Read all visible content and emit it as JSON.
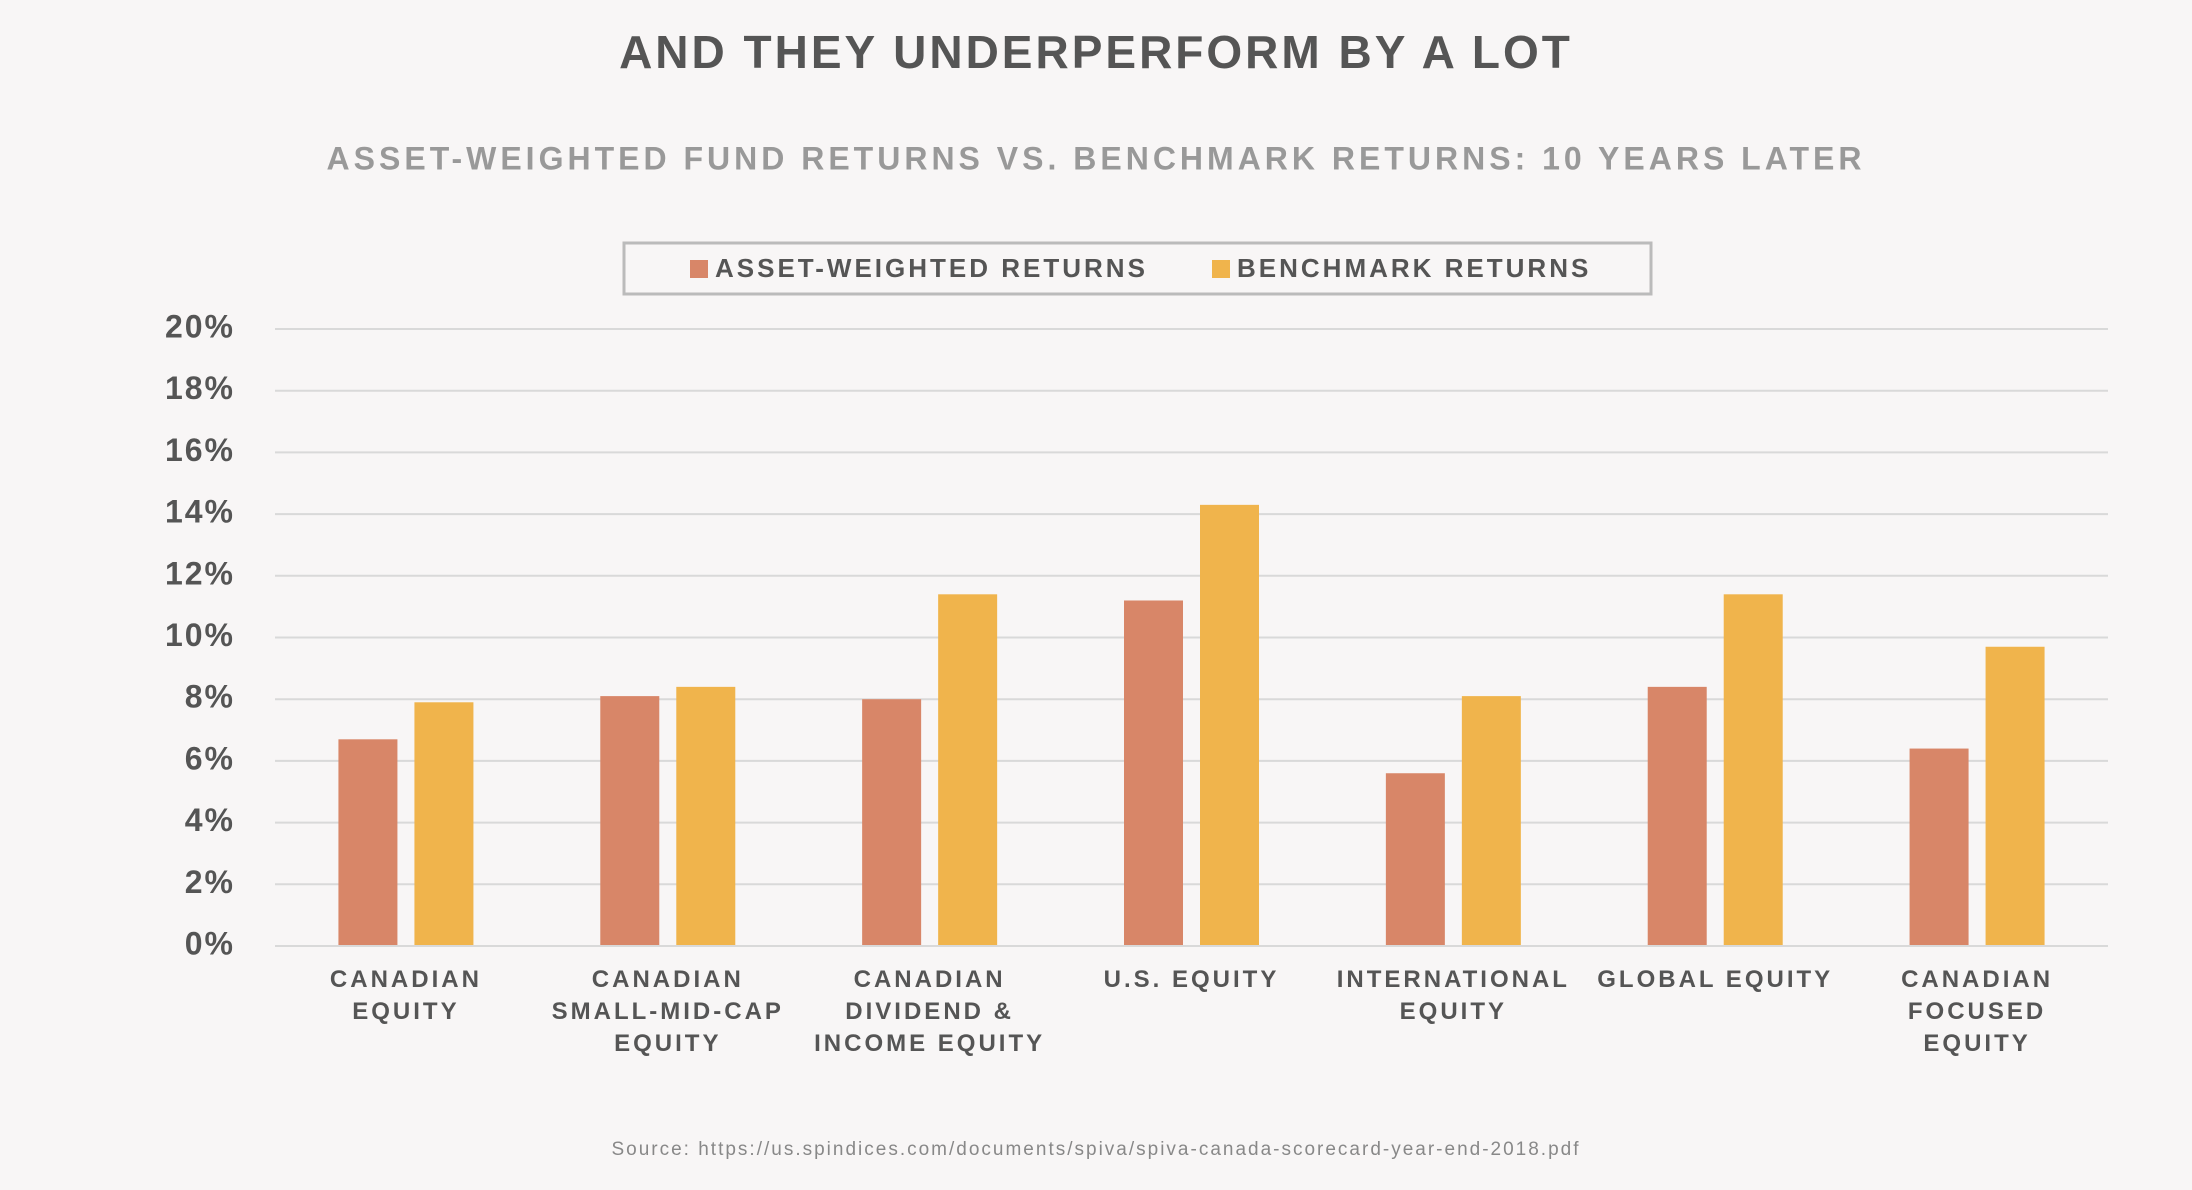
{
  "chart_data": {
    "type": "bar",
    "title": "AND THEY UNDERPERFORM BY A LOT",
    "subtitle": "ASSET-WEIGHTED FUND RETURNS VS. BENCHMARK RETURNS: 10 YEARS LATER",
    "categories": [
      "CANADIAN EQUITY",
      "CANADIAN SMALL-MID-CAP EQUITY",
      "CANADIAN DIVIDEND & INCOME EQUITY",
      "U.S. EQUITY",
      "INTERNATIONAL EQUITY",
      "GLOBAL EQUITY",
      "CANADIAN FOCUSED EQUITY"
    ],
    "series": [
      {
        "name": "ASSET-WEIGHTED RETURNS",
        "color": "#d88668",
        "values": [
          6.7,
          8.1,
          8.0,
          11.2,
          5.6,
          8.4,
          6.4
        ]
      },
      {
        "name": "BENCHMARK RETURNS",
        "color": "#f0b44c",
        "values": [
          7.9,
          8.4,
          11.4,
          14.3,
          8.1,
          11.4,
          9.7
        ]
      }
    ],
    "ylim": [
      0,
      20
    ],
    "yticks": [
      {
        "value": 0,
        "label": "0%"
      },
      {
        "value": 2,
        "label": "2%"
      },
      {
        "value": 4,
        "label": "4%"
      },
      {
        "value": 6,
        "label": "6%"
      },
      {
        "value": 8,
        "label": "8%"
      },
      {
        "value": 10,
        "label": "10%"
      },
      {
        "value": 12,
        "label": "12%"
      },
      {
        "value": 14,
        "label": "14%"
      },
      {
        "value": 16,
        "label": "16%"
      },
      {
        "value": 18,
        "label": "18%"
      },
      {
        "value": 20,
        "label": "20%"
      }
    ],
    "grid": true,
    "legend": "top",
    "source": "Source: https://us.spindices.com/documents/spiva/spiva-canada-scorecard-year-end-2018.pdf"
  }
}
